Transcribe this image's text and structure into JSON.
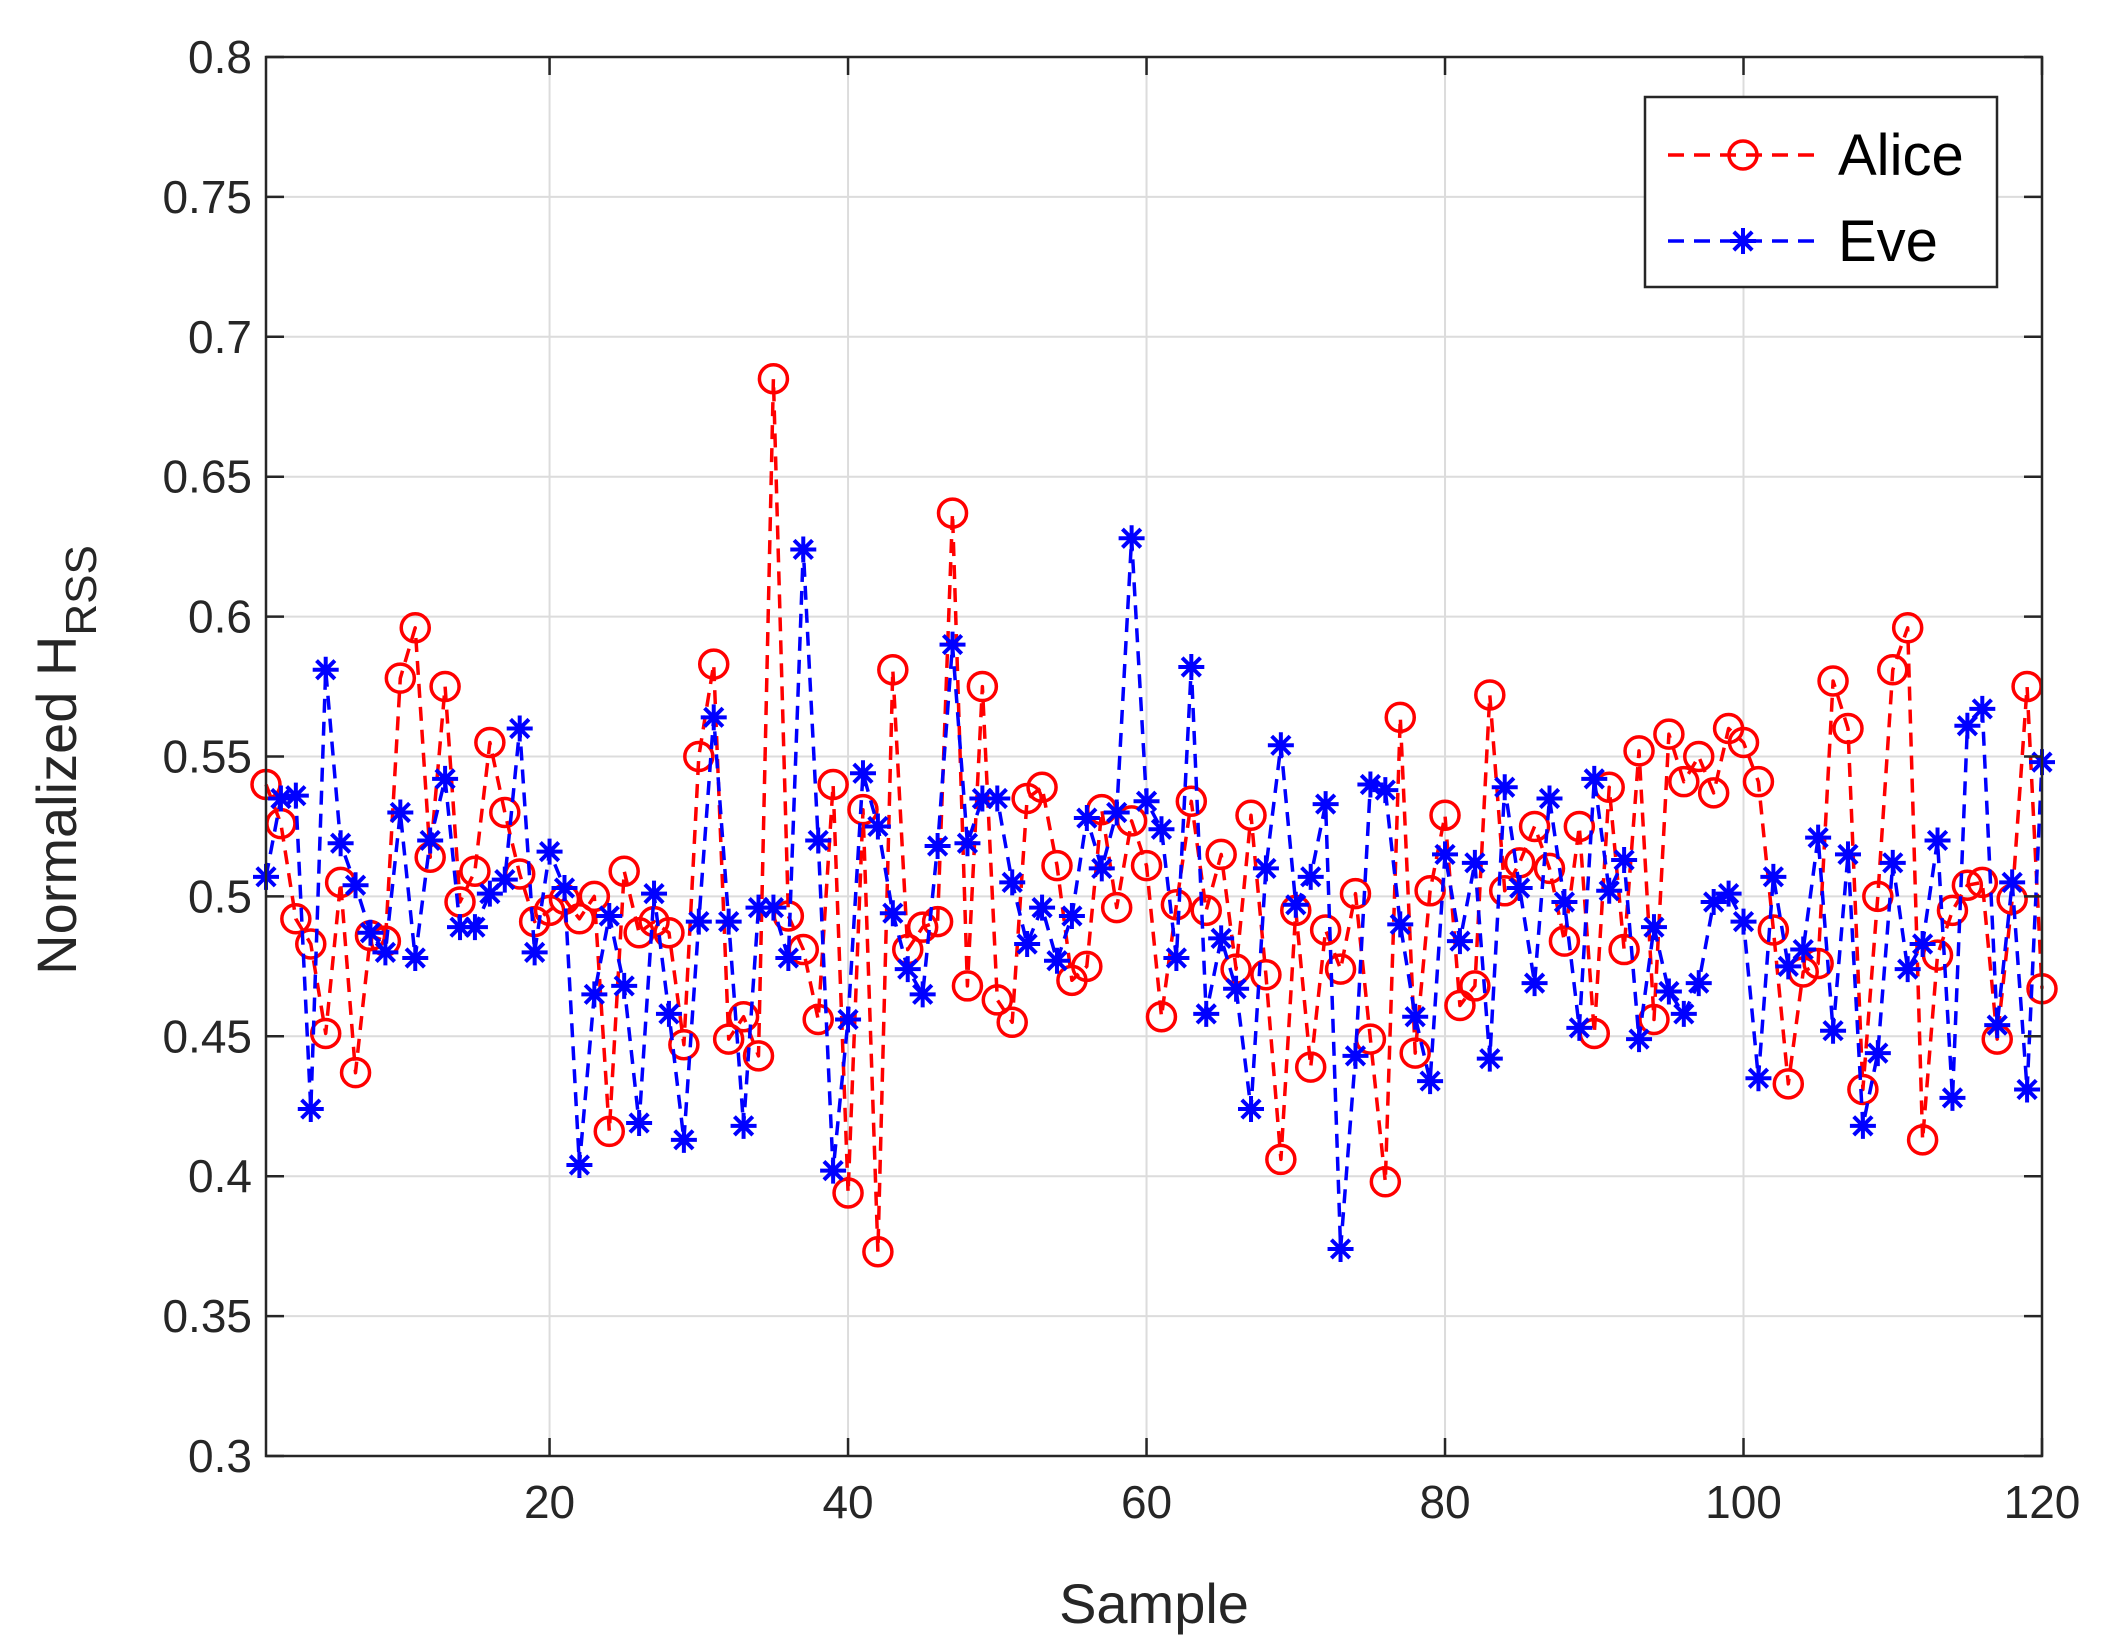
{
  "chart_data": {
    "type": "line",
    "title": "",
    "xlabel": "Sample",
    "ylabel": "Normalized H",
    "ylabel_subscript": "RSS",
    "xlim": [
      1,
      120
    ],
    "ylim": [
      0.3,
      0.8
    ],
    "grid": true,
    "legend_position": "top-right",
    "x_ticks": [
      20,
      40,
      60,
      80,
      100,
      120
    ],
    "x_tick_labels": [
      "20",
      "40",
      "60",
      "80",
      "100",
      "120"
    ],
    "y_ticks": [
      0.3,
      0.35,
      0.4,
      0.45,
      0.5,
      0.55,
      0.6,
      0.65,
      0.7,
      0.75,
      0.8
    ],
    "y_tick_labels": [
      "0.3",
      "0.35",
      "0.4",
      "0.45",
      "0.5",
      "0.55",
      "0.6",
      "0.65",
      "0.7",
      "0.75",
      "0.8"
    ],
    "x": [
      1,
      2,
      3,
      4,
      5,
      6,
      7,
      8,
      9,
      10,
      11,
      12,
      13,
      14,
      15,
      16,
      17,
      18,
      19,
      20,
      21,
      22,
      23,
      24,
      25,
      26,
      27,
      28,
      29,
      30,
      31,
      32,
      33,
      34,
      35,
      36,
      37,
      38,
      39,
      40,
      41,
      42,
      43,
      44,
      45,
      46,
      47,
      48,
      49,
      50,
      51,
      52,
      53,
      54,
      55,
      56,
      57,
      58,
      59,
      60,
      61,
      62,
      63,
      64,
      65,
      66,
      67,
      68,
      69,
      70,
      71,
      72,
      73,
      74,
      75,
      76,
      77,
      78,
      79,
      80,
      81,
      82,
      83,
      84,
      85,
      86,
      87,
      88,
      89,
      90,
      91,
      92,
      93,
      94,
      95,
      96,
      97,
      98,
      99,
      100,
      101,
      102,
      103,
      104,
      105,
      106,
      107,
      108,
      109,
      110,
      111,
      112,
      113,
      114,
      115,
      116,
      117,
      118,
      119,
      120
    ],
    "series": [
      {
        "name": "Alice",
        "color": "#ff0000",
        "marker": "circle",
        "line_style": "dashed",
        "values": [
          0.54,
          0.526,
          0.492,
          0.483,
          0.451,
          0.505,
          0.437,
          0.486,
          0.484,
          0.578,
          0.596,
          0.514,
          0.575,
          0.498,
          0.509,
          0.555,
          0.53,
          0.508,
          0.491,
          0.495,
          0.499,
          0.492,
          0.5,
          0.416,
          0.509,
          0.487,
          0.491,
          0.487,
          0.447,
          0.55,
          0.583,
          0.449,
          0.457,
          0.443,
          0.685,
          0.493,
          0.481,
          0.456,
          0.54,
          0.394,
          0.531,
          0.373,
          0.581,
          0.481,
          0.489,
          0.491,
          0.637,
          0.468,
          0.575,
          0.463,
          0.455,
          0.535,
          0.539,
          0.511,
          0.47,
          0.475,
          0.531,
          0.496,
          0.527,
          0.511,
          0.457,
          0.497,
          0.534,
          0.495,
          0.515,
          0.474,
          0.529,
          0.472,
          0.406,
          0.495,
          0.439,
          0.488,
          0.474,
          0.501,
          0.449,
          0.398,
          0.564,
          0.444,
          0.502,
          0.529,
          0.461,
          0.468,
          0.572,
          0.502,
          0.512,
          0.525,
          0.51,
          0.484,
          0.525,
          0.451,
          0.539,
          0.481,
          0.552,
          0.456,
          0.558,
          0.541,
          0.55,
          0.537,
          0.56,
          0.555,
          0.541,
          0.488,
          0.433,
          0.473,
          0.476,
          0.577,
          0.56,
          0.431,
          0.5,
          0.581,
          0.596,
          0.413,
          0.479,
          0.495,
          0.504,
          0.505,
          0.449,
          0.499,
          0.575,
          0.467
        ]
      },
      {
        "name": "Eve",
        "color": "#0000ff",
        "marker": "asterisk",
        "line_style": "dashed",
        "values": [
          0.507,
          0.535,
          0.536,
          0.424,
          0.581,
          0.519,
          0.504,
          0.487,
          0.48,
          0.53,
          0.478,
          0.52,
          0.542,
          0.489,
          0.489,
          0.501,
          0.506,
          0.56,
          0.48,
          0.516,
          0.503,
          0.404,
          0.465,
          0.493,
          0.468,
          0.419,
          0.501,
          0.458,
          0.413,
          0.491,
          0.564,
          0.491,
          0.418,
          0.496,
          0.496,
          0.478,
          0.624,
          0.52,
          0.402,
          0.456,
          0.544,
          0.525,
          0.494,
          0.474,
          0.465,
          0.518,
          0.59,
          0.519,
          0.535,
          0.535,
          0.505,
          0.483,
          0.496,
          0.477,
          0.493,
          0.528,
          0.51,
          0.53,
          0.628,
          0.534,
          0.524,
          0.478,
          0.582,
          0.458,
          0.485,
          0.467,
          0.424,
          0.51,
          0.554,
          0.497,
          0.507,
          0.533,
          0.374,
          0.443,
          0.54,
          0.538,
          0.49,
          0.457,
          0.434,
          0.515,
          0.484,
          0.512,
          0.442,
          0.539,
          0.503,
          0.469,
          0.535,
          0.498,
          0.453,
          0.542,
          0.502,
          0.513,
          0.449,
          0.489,
          0.466,
          0.458,
          0.469,
          0.498,
          0.501,
          0.491,
          0.435,
          0.507,
          0.475,
          0.481,
          0.521,
          0.452,
          0.515,
          0.418,
          0.444,
          0.512,
          0.474,
          0.483,
          0.52,
          0.428,
          0.561,
          0.567,
          0.454,
          0.505,
          0.431,
          0.548
        ]
      }
    ]
  }
}
